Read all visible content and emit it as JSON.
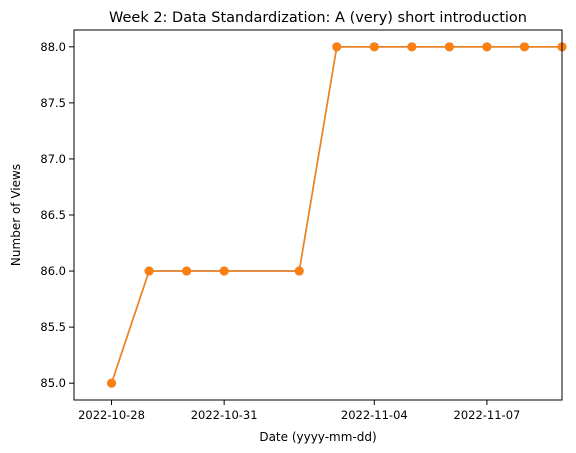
{
  "chart_data": {
    "type": "line",
    "title": "Week 2: Data Standardization: A (very) short introduction",
    "xlabel": "Date (yyyy-mm-dd)",
    "ylabel": "Number of Views",
    "x": [
      "2022-10-28",
      "2022-10-29",
      "2022-10-30",
      "2022-10-31",
      "2022-11-01",
      "2022-11-02",
      "2022-11-03",
      "2022-11-04",
      "2022-11-05",
      "2022-11-06",
      "2022-11-07",
      "2022-11-08",
      "2022-11-09"
    ],
    "xlim": [
      "2022-10-27",
      "2022-11-09"
    ],
    "ylim": [
      84.85,
      88.15
    ],
    "xticks": [
      "2022-10-28",
      "2022-10-31",
      "2022-11-04",
      "2022-11-07"
    ],
    "yticks": [
      "85.0",
      "85.5",
      "86.0",
      "86.5",
      "87.0",
      "87.5",
      "88.0"
    ],
    "grid": false,
    "series": [
      {
        "color": "#1f77b4",
        "x": [
          "2022-10-28",
          "2022-10-29",
          "2022-10-30",
          "2022-10-31",
          "2022-11-02",
          "2022-11-03",
          "2022-11-04",
          "2022-11-05",
          "2022-11-06",
          "2022-11-07",
          "2022-11-08",
          "2022-11-09"
        ],
        "values": [
          85,
          86,
          86,
          86,
          86,
          88,
          88,
          88,
          88,
          88,
          88,
          88
        ]
      },
      {
        "color": "#ff7f0e",
        "x": [
          "2022-10-28",
          "2022-10-29",
          "2022-10-30",
          "2022-10-31",
          "2022-11-02",
          "2022-11-03",
          "2022-11-04",
          "2022-11-05",
          "2022-11-06",
          "2022-11-07",
          "2022-11-08",
          "2022-11-09"
        ],
        "values": [
          85,
          86,
          86,
          86,
          86,
          88,
          88,
          88,
          88,
          88,
          88,
          88
        ]
      }
    ]
  }
}
